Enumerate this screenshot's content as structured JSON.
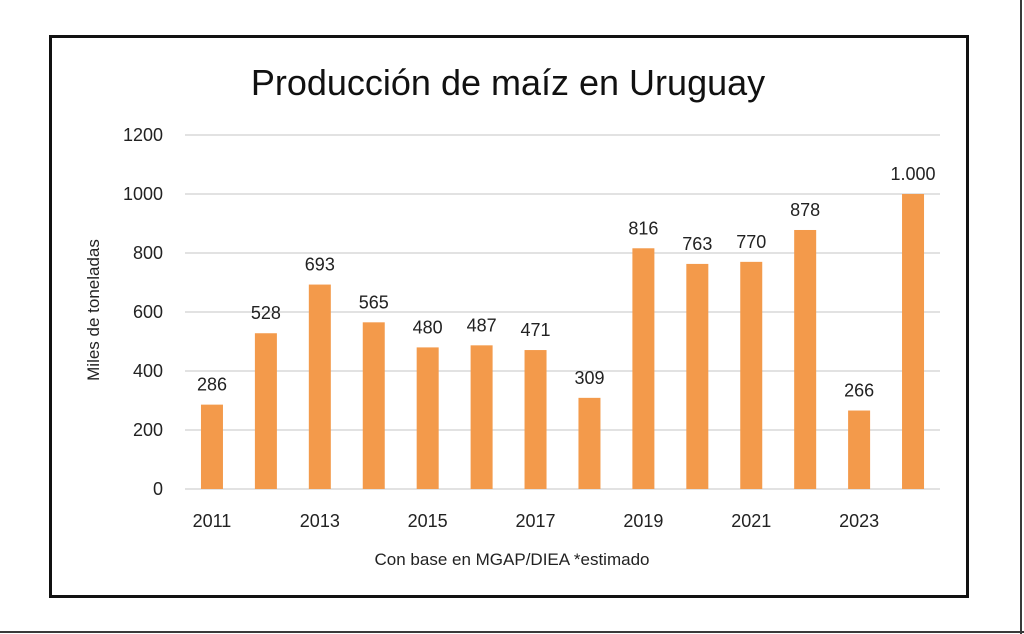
{
  "chart_data": {
    "type": "bar",
    "title": "Producción de maíz en Uruguay",
    "xlabel": "Con base en MGAP/DIEA *estimado",
    "ylabel": "Miles de toneladas",
    "categories": [
      "2011",
      "2012",
      "2013",
      "2014",
      "2015",
      "2016",
      "2017",
      "2018",
      "2019",
      "2020",
      "2021",
      "2022",
      "2023",
      "2024"
    ],
    "x_tick_labels": [
      "2011",
      "",
      "2013",
      "",
      "2015",
      "",
      "2017",
      "",
      "2019",
      "",
      "2021",
      "",
      "2023",
      ""
    ],
    "values": [
      286,
      528,
      693,
      565,
      480,
      487,
      471,
      309,
      816,
      763,
      770,
      878,
      266,
      1000
    ],
    "data_labels": [
      "286",
      "528",
      "693",
      "565",
      "480",
      "487",
      "471",
      "309",
      "816",
      "763",
      "770",
      "878",
      "266",
      "1.000"
    ],
    "ylim": [
      0,
      1200
    ],
    "y_ticks": [
      0,
      200,
      400,
      600,
      800,
      1000,
      1200
    ],
    "grid": true,
    "legend": "none",
    "bar_color": "#F39A4B",
    "grid_color": "#D9D9D9"
  }
}
